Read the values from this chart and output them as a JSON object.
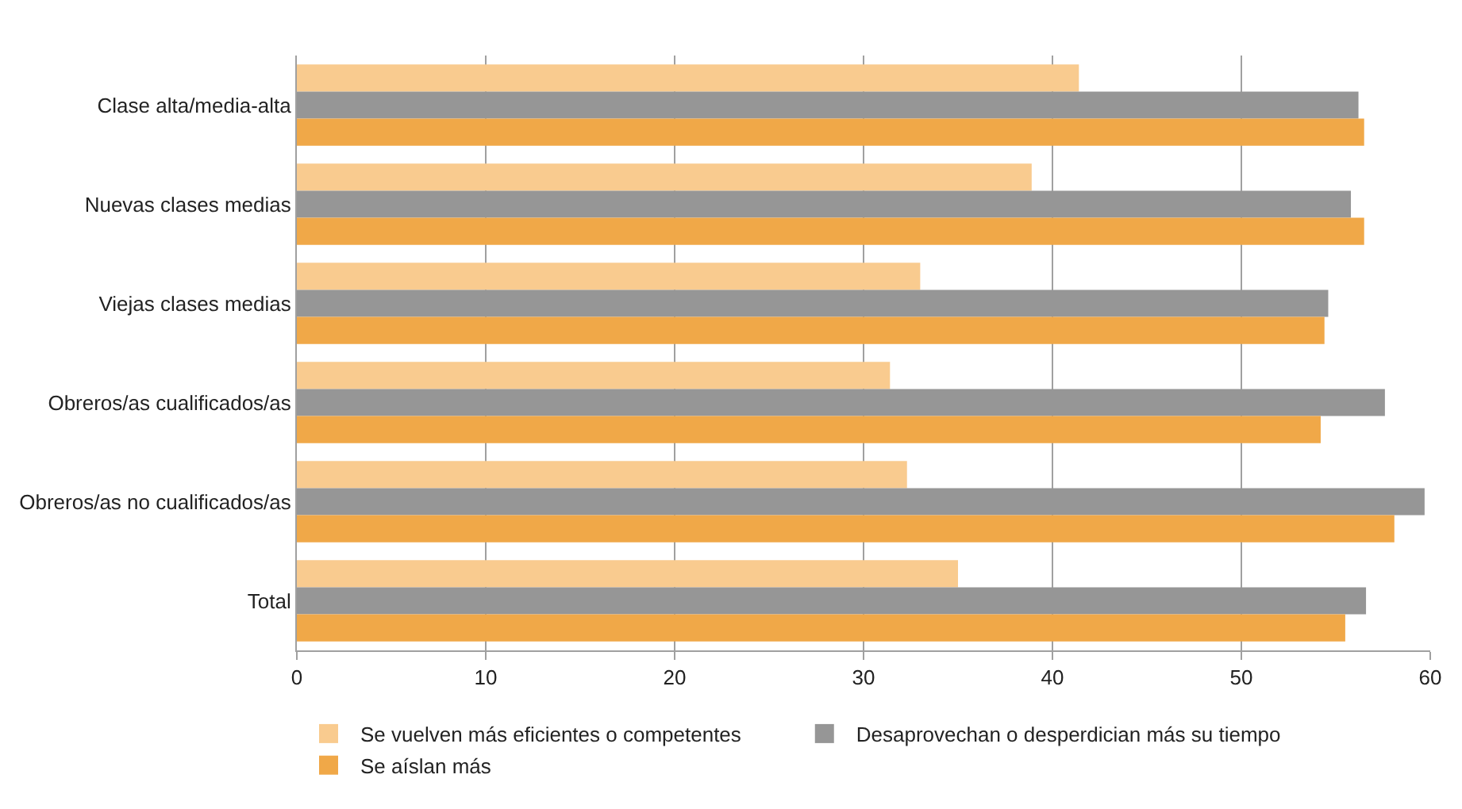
{
  "chart_data": {
    "type": "bar",
    "orientation": "horizontal",
    "categories": [
      "Clase alta/media-alta",
      "Nuevas clases medias",
      "Viejas clases medias",
      "Obreros/as cualificados/as",
      "Obreros/as no cualificados/as",
      "Total"
    ],
    "series": [
      {
        "name": "Se vuelven más eficientes o competentes",
        "color": "#f9cb8f",
        "values": [
          41.4,
          38.9,
          33.0,
          31.4,
          32.3,
          35.0
        ]
      },
      {
        "name": "Desaprovechan o desperdician más su tiempo",
        "color": "#969696",
        "values": [
          56.2,
          55.8,
          54.6,
          57.6,
          59.7,
          56.6
        ]
      },
      {
        "name": "Se aíslan más",
        "color": "#f0a848",
        "values": [
          56.5,
          56.5,
          54.4,
          54.2,
          58.1,
          55.5
        ]
      }
    ],
    "xlim": [
      0,
      60
    ],
    "xticks": [
      0,
      10,
      20,
      30,
      40,
      50,
      60
    ],
    "grid": "x",
    "legend": "bottom"
  }
}
